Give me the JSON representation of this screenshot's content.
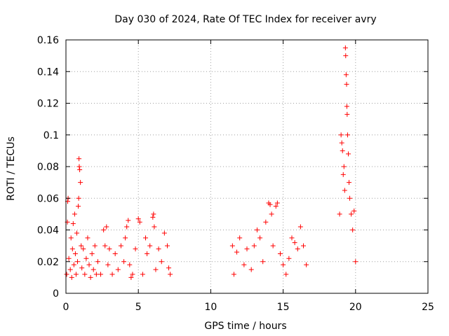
{
  "chart_data": {
    "type": "scatter",
    "title": "Day 030 of 2024, Rate Of TEC Index for receiver avry",
    "xlabel": "GPS time / hours",
    "ylabel": "ROTI / TECUs",
    "xlim": [
      0,
      25
    ],
    "ylim": [
      0,
      0.16
    ],
    "xticks": [
      0,
      5,
      10,
      15,
      20,
      25
    ],
    "xtick_labels": [
      "0",
      "5",
      "10",
      "15",
      "20",
      "25"
    ],
    "yticks": [
      0,
      0.02,
      0.04,
      0.06,
      0.08,
      0.1,
      0.12,
      0.14,
      0.16
    ],
    "ytick_labels": [
      "0",
      "0.02",
      "0.04",
      "0.06",
      "0.08",
      "0.1",
      "0.12",
      "0.14",
      "0.16"
    ],
    "grid": true,
    "marker": "+",
    "marker_color": "#ff0000",
    "series": [
      {
        "points": [
          [
            0.05,
            0.012
          ],
          [
            0.1,
            0.045
          ],
          [
            0.12,
            0.058
          ],
          [
            0.15,
            0.06
          ],
          [
            0.2,
            0.022
          ],
          [
            0.3,
            0.015
          ],
          [
            0.35,
            0.035
          ],
          [
            0.4,
            0.01
          ],
          [
            0.45,
            0.028
          ],
          [
            0.5,
            0.044
          ],
          [
            0.55,
            0.018
          ],
          [
            0.6,
            0.05
          ],
          [
            0.65,
            0.025
          ],
          [
            0.7,
            0.012
          ],
          [
            0.75,
            0.038
          ],
          [
            0.8,
            0.02
          ],
          [
            0.85,
            0.055
          ],
          [
            0.88,
            0.06
          ],
          [
            0.9,
            0.085
          ],
          [
            0.92,
            0.08
          ],
          [
            0.95,
            0.078
          ],
          [
            1.0,
            0.07
          ],
          [
            1.05,
            0.03
          ],
          [
            1.1,
            0.016
          ],
          [
            1.2,
            0.028
          ],
          [
            1.3,
            0.012
          ],
          [
            1.4,
            0.022
          ],
          [
            1.5,
            0.035
          ],
          [
            1.6,
            0.018
          ],
          [
            1.7,
            0.01
          ],
          [
            1.8,
            0.025
          ],
          [
            1.9,
            0.015
          ],
          [
            2.0,
            0.03
          ],
          [
            2.1,
            0.012
          ],
          [
            2.2,
            0.02
          ],
          [
            2.4,
            0.012
          ],
          [
            2.6,
            0.04
          ],
          [
            2.7,
            0.03
          ],
          [
            2.8,
            0.042
          ],
          [
            2.9,
            0.018
          ],
          [
            3.0,
            0.028
          ],
          [
            3.2,
            0.012
          ],
          [
            3.4,
            0.025
          ],
          [
            3.6,
            0.015
          ],
          [
            3.8,
            0.03
          ],
          [
            4.0,
            0.02
          ],
          [
            4.1,
            0.035
          ],
          [
            4.2,
            0.042
          ],
          [
            4.3,
            0.046
          ],
          [
            4.4,
            0.018
          ],
          [
            4.5,
            0.01
          ],
          [
            4.6,
            0.012
          ],
          [
            4.8,
            0.028
          ],
          [
            5.0,
            0.047
          ],
          [
            5.1,
            0.045
          ],
          [
            5.3,
            0.012
          ],
          [
            5.5,
            0.035
          ],
          [
            5.6,
            0.025
          ],
          [
            5.8,
            0.03
          ],
          [
            6.0,
            0.048
          ],
          [
            6.05,
            0.05
          ],
          [
            6.1,
            0.042
          ],
          [
            6.2,
            0.015
          ],
          [
            6.4,
            0.028
          ],
          [
            6.6,
            0.02
          ],
          [
            6.8,
            0.038
          ],
          [
            7.0,
            0.03
          ],
          [
            7.1,
            0.016
          ],
          [
            7.2,
            0.012
          ],
          [
            11.5,
            0.03
          ],
          [
            11.6,
            0.012
          ],
          [
            11.8,
            0.026
          ],
          [
            12.0,
            0.035
          ],
          [
            12.3,
            0.018
          ],
          [
            12.5,
            0.028
          ],
          [
            12.8,
            0.015
          ],
          [
            13.0,
            0.03
          ],
          [
            13.2,
            0.04
          ],
          [
            13.4,
            0.035
          ],
          [
            13.6,
            0.02
          ],
          [
            13.8,
            0.045
          ],
          [
            14.0,
            0.057
          ],
          [
            14.1,
            0.056
          ],
          [
            14.2,
            0.05
          ],
          [
            14.3,
            0.03
          ],
          [
            14.5,
            0.055
          ],
          [
            14.6,
            0.057
          ],
          [
            14.8,
            0.025
          ],
          [
            15.0,
            0.018
          ],
          [
            15.2,
            0.012
          ],
          [
            15.4,
            0.022
          ],
          [
            15.6,
            0.035
          ],
          [
            15.8,
            0.032
          ],
          [
            16.0,
            0.028
          ],
          [
            16.2,
            0.042
          ],
          [
            16.4,
            0.03
          ],
          [
            16.6,
            0.018
          ],
          [
            18.9,
            0.05
          ],
          [
            19.0,
            0.1
          ],
          [
            19.05,
            0.095
          ],
          [
            19.1,
            0.09
          ],
          [
            19.15,
            0.075
          ],
          [
            19.2,
            0.08
          ],
          [
            19.25,
            0.065
          ],
          [
            19.3,
            0.155
          ],
          [
            19.32,
            0.15
          ],
          [
            19.35,
            0.138
          ],
          [
            19.38,
            0.132
          ],
          [
            19.4,
            0.118
          ],
          [
            19.42,
            0.113
          ],
          [
            19.45,
            0.1
          ],
          [
            19.5,
            0.088
          ],
          [
            19.55,
            0.07
          ],
          [
            19.6,
            0.06
          ],
          [
            19.7,
            0.05
          ],
          [
            19.8,
            0.04
          ],
          [
            19.9,
            0.052
          ],
          [
            20.0,
            0.02
          ]
        ]
      }
    ]
  }
}
